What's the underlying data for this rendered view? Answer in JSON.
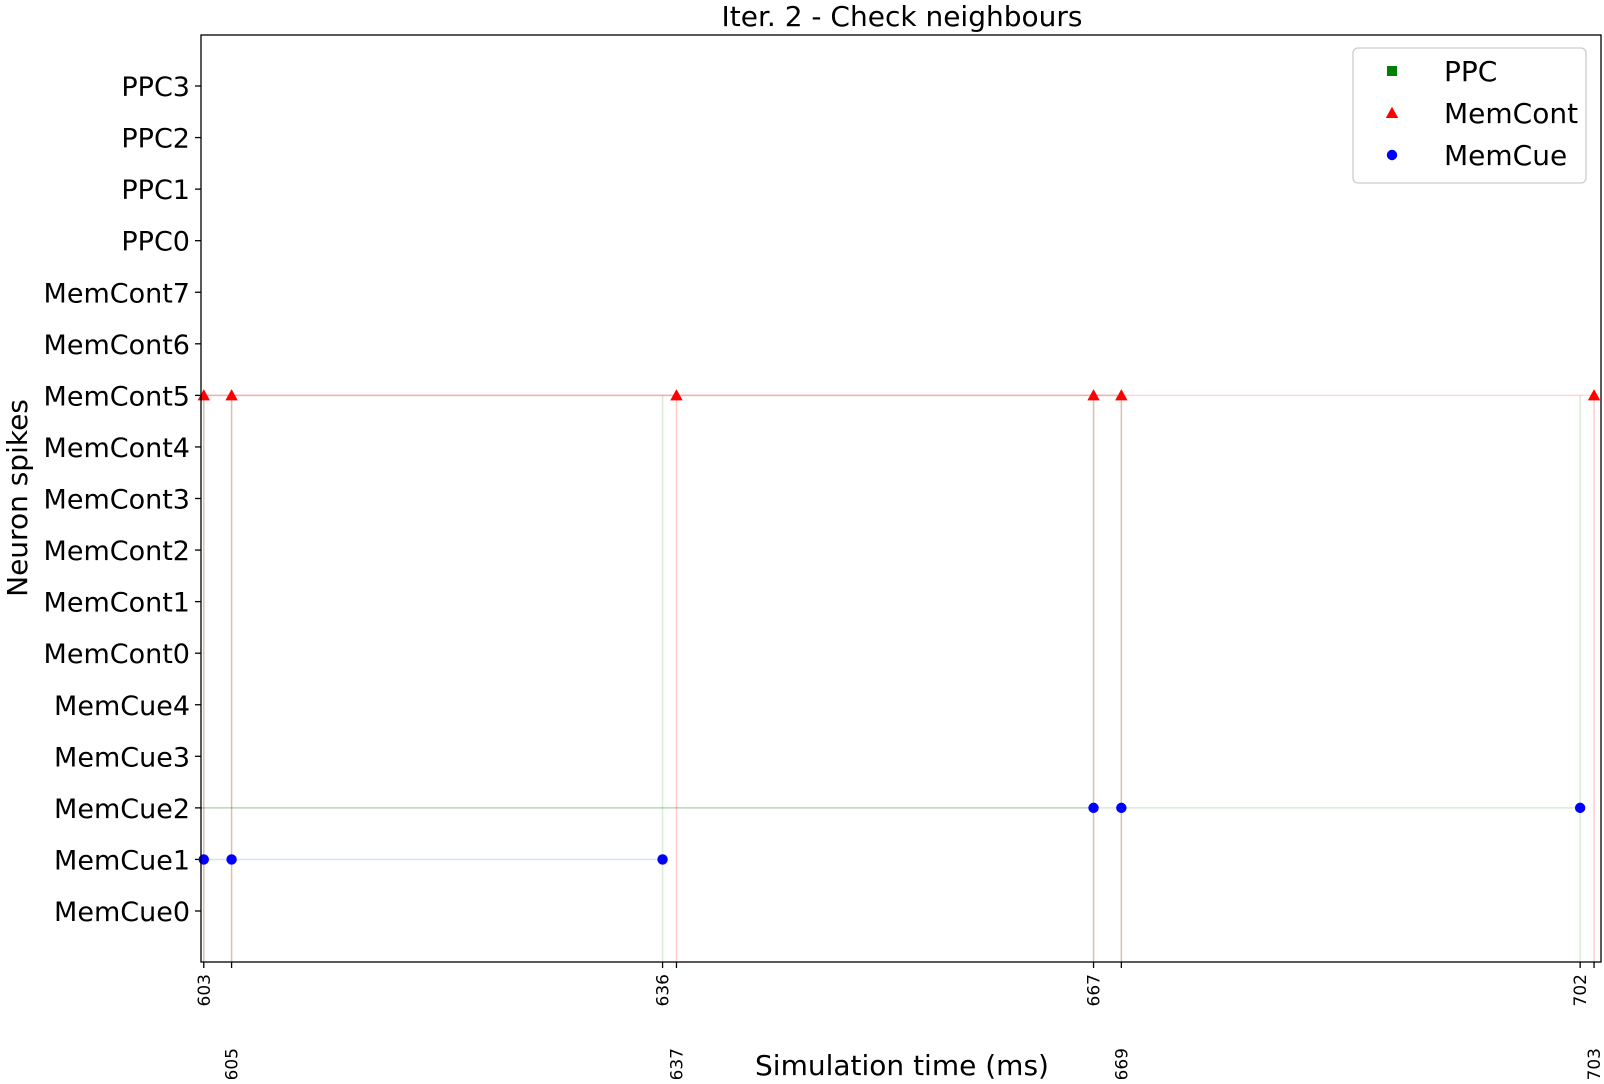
{
  "chart_data": {
    "type": "scatter",
    "title": "Iter. 2 - Check neighbours",
    "xlabel": "Simulation time (ms)",
    "ylabel": "Neuron spikes",
    "xlim": [
      602.8,
      703.5
    ],
    "x_ticks": [
      603,
      605,
      636,
      637,
      667,
      669,
      702,
      703
    ],
    "y_categories": [
      "MemCue0",
      "MemCue1",
      "MemCue2",
      "MemCue3",
      "MemCue4",
      "MemCont0",
      "MemCont1",
      "MemCont2",
      "MemCont3",
      "MemCont4",
      "MemCont5",
      "MemCont6",
      "MemCont7",
      "PPC0",
      "PPC1",
      "PPC2",
      "PPC3"
    ],
    "legend": {
      "placement": "top-right",
      "entries": [
        {
          "label": "PPC",
          "color": "#008000",
          "marker": "square"
        },
        {
          "label": "MemCont",
          "color": "#ff0000",
          "marker": "triangle"
        },
        {
          "label": "MemCue",
          "color": "#0000ff",
          "marker": "circle"
        }
      ]
    },
    "series": [
      {
        "name": "PPC",
        "color": "#008000",
        "marker": "square",
        "points": []
      },
      {
        "name": "MemCont",
        "color": "#ff0000",
        "marker": "triangle",
        "points": [
          {
            "x": 603,
            "y": "MemCont5"
          },
          {
            "x": 605,
            "y": "MemCont5"
          },
          {
            "x": 637,
            "y": "MemCont5"
          },
          {
            "x": 667,
            "y": "MemCont5"
          },
          {
            "x": 669,
            "y": "MemCont5"
          },
          {
            "x": 703,
            "y": "MemCont5"
          }
        ]
      },
      {
        "name": "MemCue",
        "color": "#0000ff",
        "marker": "circle",
        "points": [
          {
            "x": 603,
            "y": "MemCue1"
          },
          {
            "x": 605,
            "y": "MemCue1"
          },
          {
            "x": 636,
            "y": "MemCue1"
          },
          {
            "x": 667,
            "y": "MemCue2"
          },
          {
            "x": 669,
            "y": "MemCue2"
          },
          {
            "x": 702,
            "y": "MemCue2"
          }
        ]
      }
    ],
    "guide_lines": [
      {
        "kind": "horizontal",
        "y": "MemCont5",
        "from": 603,
        "to": 669,
        "color": "#ff0000",
        "opacity": 0.35
      },
      {
        "kind": "horizontal",
        "y": "MemCont5",
        "from": 669,
        "to": 703,
        "color": "#ff0000",
        "opacity": 0.15
      },
      {
        "kind": "horizontal",
        "y": "MemCue2",
        "from": 602.8,
        "to": 667,
        "color": "#008000",
        "opacity": 0.3
      },
      {
        "kind": "horizontal",
        "y": "MemCue2",
        "from": 667,
        "to": 702,
        "color": "#008000",
        "opacity": 0.15
      },
      {
        "kind": "horizontal",
        "y": "MemCue1",
        "from": 603,
        "to": 636,
        "color": "#1f77b4",
        "opacity": 0.2
      },
      {
        "kind": "vertical",
        "x": 603,
        "color": "#ff0000",
        "opacity": 0.2
      },
      {
        "kind": "vertical",
        "x": 605,
        "color": "#ff0000",
        "opacity": 0.2
      },
      {
        "kind": "vertical",
        "x": 637,
        "color": "#ff0000",
        "opacity": 0.2
      },
      {
        "kind": "vertical",
        "x": 667,
        "color": "#ff0000",
        "opacity": 0.2
      },
      {
        "kind": "vertical",
        "x": 669,
        "color": "#ff0000",
        "opacity": 0.2
      },
      {
        "kind": "vertical",
        "x": 703,
        "color": "#ff0000",
        "opacity": 0.2
      },
      {
        "kind": "vertical",
        "x": 603,
        "color": "#008000",
        "opacity": 0.15
      },
      {
        "kind": "vertical",
        "x": 605,
        "color": "#008000",
        "opacity": 0.15
      },
      {
        "kind": "vertical",
        "x": 636,
        "color": "#008000",
        "opacity": 0.15
      },
      {
        "kind": "vertical",
        "x": 667,
        "color": "#008000",
        "opacity": 0.15
      },
      {
        "kind": "vertical",
        "x": 669,
        "color": "#008000",
        "opacity": 0.15
      },
      {
        "kind": "vertical",
        "x": 702,
        "color": "#008000",
        "opacity": 0.15
      }
    ],
    "grid": false
  }
}
